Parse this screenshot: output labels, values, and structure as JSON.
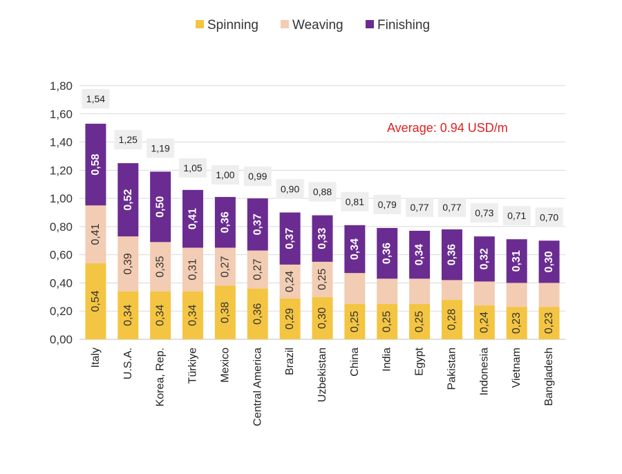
{
  "chart_data": {
    "type": "bar",
    "stacked": true,
    "title": "",
    "xlabel": "",
    "ylabel": "",
    "ylim": [
      0,
      1.8
    ],
    "ytick_step": 0.2,
    "ytick_labels": [
      "0,00",
      "0,20",
      "0,40",
      "0,60",
      "0,80",
      "1,00",
      "1,20",
      "1,40",
      "1,60",
      "1,80"
    ],
    "grid": true,
    "legend_position": "top-center",
    "categories": [
      "Italy",
      "U.S.A.",
      "Korea, Rep.",
      "Türkiye",
      "Mexico",
      "Central America",
      "Brazil",
      "Uzbekistan",
      "China",
      "India",
      "Egypt",
      "Pakistan",
      "Indonesia",
      "Vietnam",
      "Bangladesh"
    ],
    "series": [
      {
        "name": "Spinning",
        "color": "#F4C542",
        "label_color": "#333333",
        "values": [
          0.54,
          0.34,
          0.34,
          0.34,
          0.38,
          0.36,
          0.29,
          0.3,
          0.25,
          0.25,
          0.25,
          0.28,
          0.24,
          0.23,
          0.23
        ],
        "value_labels": [
          "0,54",
          "0,34",
          "0,34",
          "0,34",
          "0,38",
          "0,36",
          "0,29",
          "0,30",
          "0,25",
          "0,25",
          "0,25",
          "0,28",
          "0,24",
          "0,23",
          "0,23"
        ]
      },
      {
        "name": "Weaving",
        "color": "#F2CCB3",
        "label_color": "#333333",
        "values": [
          0.41,
          0.39,
          0.35,
          0.31,
          0.27,
          0.27,
          0.24,
          0.25,
          0.22,
          0.18,
          0.18,
          0.14,
          0.17,
          0.17,
          0.17
        ],
        "value_labels": [
          "0,41",
          "0,39",
          "0,35",
          "0,31",
          "0,27",
          "0,27",
          "0,24",
          "0,25",
          "",
          "",
          "",
          "",
          "",
          "",
          ""
        ]
      },
      {
        "name": "Finishing",
        "color": "#6A2C91",
        "label_color": "#FFFFFF",
        "values": [
          0.58,
          0.52,
          0.5,
          0.41,
          0.36,
          0.37,
          0.37,
          0.33,
          0.34,
          0.36,
          0.34,
          0.36,
          0.32,
          0.31,
          0.3
        ],
        "value_labels": [
          "0,58",
          "0,52",
          "0,50",
          "0,41",
          "0,36",
          "0,37",
          "0,37",
          "0,33",
          "0,34",
          "0,36",
          "0,34",
          "0,36",
          "0,32",
          "0,31",
          "0,30"
        ]
      }
    ],
    "totals": [
      1.54,
      1.25,
      1.19,
      1.05,
      1.0,
      0.99,
      0.9,
      0.88,
      0.81,
      0.79,
      0.77,
      0.77,
      0.73,
      0.71,
      0.7
    ],
    "total_labels": [
      "1,54",
      "1,25",
      "1,19",
      "1,05",
      "1,00",
      "0,99",
      "0,90",
      "0,88",
      "0,81",
      "0,79",
      "0,77",
      "0,77",
      "0,73",
      "0,71",
      "0,70"
    ],
    "annotation": {
      "text": "Average: 0.94 USD/m",
      "color": "#E02020"
    }
  }
}
